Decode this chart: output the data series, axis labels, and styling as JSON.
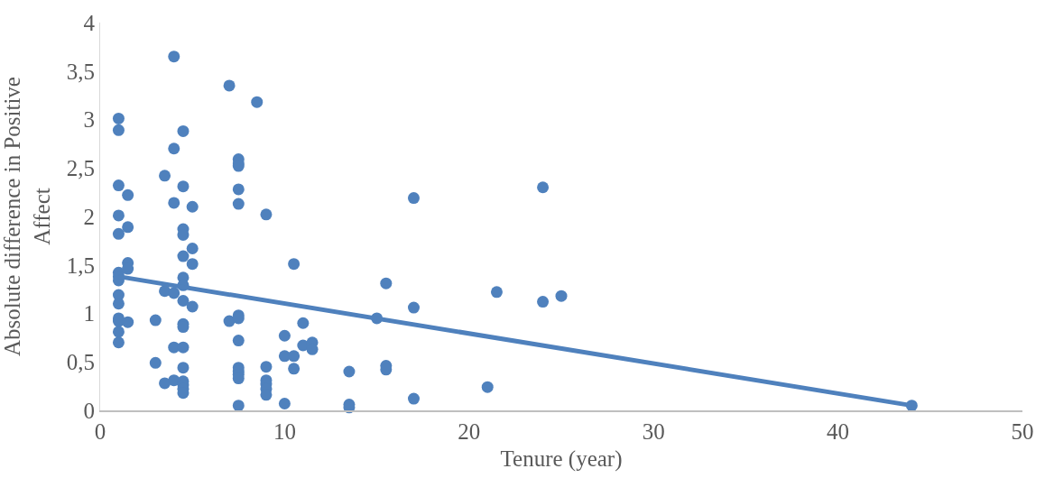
{
  "chart_data": {
    "type": "scatter",
    "xlabel": "Tenure (year)",
    "ylabel": "Absolute difference in Positive Affect",
    "xlim": [
      0,
      50
    ],
    "xticks": [
      0,
      10,
      20,
      30,
      40,
      50
    ],
    "ylim": [
      0,
      4
    ],
    "yticks": [
      0,
      {
        "value": 0.5,
        "label": "0,5"
      },
      1,
      {
        "value": 1.5,
        "label": "1,5"
      },
      2,
      {
        "value": 2.5,
        "label": "2,5"
      },
      3,
      {
        "value": 3.5,
        "label": "3,5"
      },
      4
    ],
    "grid": false,
    "marker": "circle",
    "series": [
      {
        "color": "#4f81bd",
        "x": [
          1,
          1,
          1,
          1,
          1,
          1,
          1,
          1,
          1,
          1,
          1,
          1,
          1,
          1,
          1.5,
          1.5,
          1.5,
          1.5,
          1.5,
          3,
          3,
          3.5,
          3.5,
          3.5,
          4,
          4,
          4,
          4,
          4,
          4,
          4.5,
          4.5,
          4.5,
          4.5,
          4.5,
          4.5,
          4.5,
          4.5,
          4.5,
          4.5,
          4.5,
          4.5,
          4.5,
          4.5,
          4.5,
          4.5,
          5,
          5,
          5,
          5,
          7,
          7,
          7.5,
          7.5,
          7.5,
          7.5,
          7.5,
          7.5,
          7.5,
          7.5,
          7.5,
          7.5,
          7.5,
          7.5,
          7.5,
          8.5,
          9,
          9,
          9,
          9,
          9,
          9,
          10,
          10,
          10,
          10.5,
          10.5,
          10.5,
          11,
          11,
          11.5,
          11.5,
          13.5,
          13.5,
          13.5,
          15,
          15.5,
          15.5,
          15.5,
          17,
          17,
          17,
          21,
          21.5,
          24,
          24,
          25,
          44
        ],
        "values": [
          3.01,
          2.89,
          2.32,
          2.01,
          1.82,
          1.42,
          1.38,
          1.34,
          1.19,
          1.1,
          0.95,
          0.92,
          0.81,
          0.7,
          2.22,
          1.89,
          1.52,
          1.46,
          0.91,
          0.93,
          0.49,
          2.42,
          1.23,
          0.28,
          3.65,
          2.7,
          2.14,
          1.21,
          0.65,
          0.31,
          2.88,
          2.31,
          1.87,
          1.81,
          1.59,
          1.37,
          1.29,
          1.13,
          0.89,
          0.86,
          0.65,
          0.44,
          0.3,
          0.26,
          0.22,
          0.18,
          2.1,
          1.67,
          1.51,
          1.07,
          3.35,
          0.92,
          2.59,
          2.55,
          2.52,
          2.28,
          2.13,
          0.98,
          0.95,
          0.72,
          0.44,
          0.4,
          0.37,
          0.33,
          0.05,
          3.18,
          2.02,
          0.45,
          0.31,
          0.27,
          0.22,
          0.16,
          0.77,
          0.56,
          0.07,
          1.51,
          0.56,
          0.43,
          0.9,
          0.67,
          0.7,
          0.63,
          0.4,
          0.06,
          0.03,
          0.95,
          1.31,
          0.46,
          0.42,
          2.19,
          1.06,
          0.12,
          0.24,
          1.22,
          2.3,
          1.12,
          1.18,
          0.05
        ]
      },
      {
        "type": "line",
        "color": "#4f81bd",
        "marker": "none",
        "line_style": "solid",
        "x": [
          1,
          44
        ],
        "values": [
          1.38,
          0.05
        ]
      }
    ]
  }
}
